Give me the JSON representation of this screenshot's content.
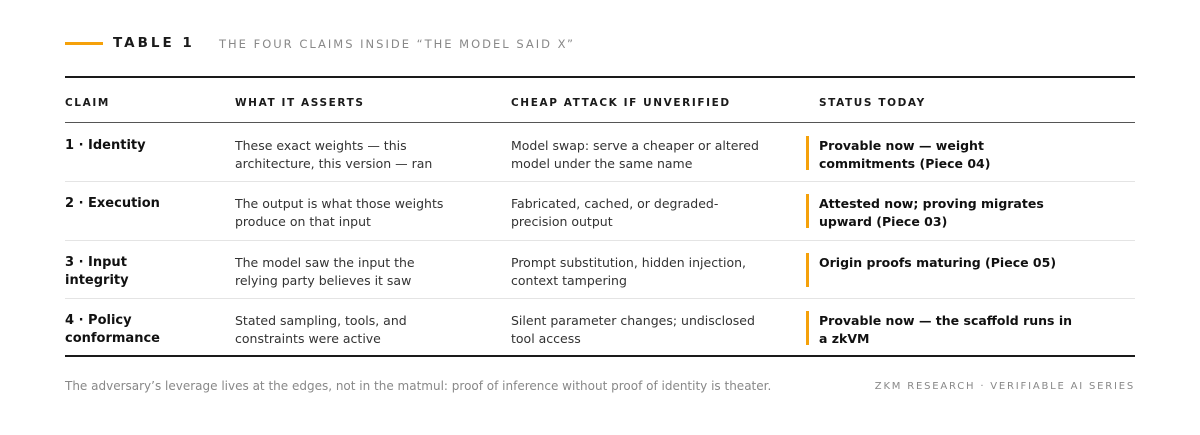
{
  "header": {
    "label": "TABLE 1",
    "title": "THE FOUR CLAIMS INSIDE “THE MODEL SAID X”"
  },
  "table": {
    "columns": [
      "CLAIM",
      "WHAT IT ASSERTS",
      "CHEAP ATTACK IF UNVERIFIED",
      "STATUS TODAY"
    ],
    "rows": [
      [
        "1 · Identity",
        "These exact weights — this architecture, this version — ran",
        "Model swap: serve a cheaper or altered model under the same name",
        "Provable now — weight commitments (Piece 04)"
      ],
      [
        "2 · Execution",
        "The output is what those weights produce on that input",
        "Fabricated, cached, or degraded-precision output",
        "Attested now; proving migrates upward (Piece 03)"
      ],
      [
        "3 · Input integrity",
        "The model saw the input the relying party believes it saw",
        "Prompt substitution, hidden injection, context tampering",
        "Origin proofs maturing (Piece 05)"
      ],
      [
        "4 · Policy conformance",
        "Stated sampling, tools, and constraints were active",
        "Silent parameter changes; undisclosed tool access",
        "Provable now — the scaffold runs in a zkVM"
      ]
    ]
  },
  "footer": {
    "note": "The adversary’s leverage lives at the edges, not in the matmul: proof of inference without proof of identity is theater.",
    "source": "ZKM RESEARCH · VERIFIABLE AI SERIES"
  }
}
